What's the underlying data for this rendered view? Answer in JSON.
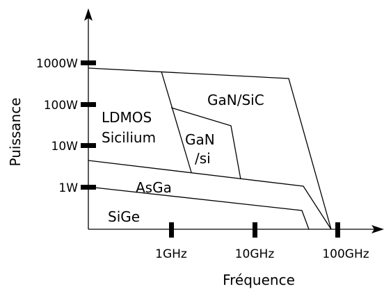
{
  "axes": {
    "x_label": "Fréquence",
    "y_label": "Puissance"
  },
  "y_ticks": [
    "1000W",
    "100W",
    "10W",
    "1W"
  ],
  "x_ticks": [
    "1GHz",
    "10GHz",
    "100GHz"
  ],
  "regions": {
    "ldmos": [
      "LDMOS",
      "Sicilium"
    ],
    "gan_sic": "GaN/SiC",
    "gan_si": [
      "GaN",
      "/si"
    ],
    "asga": "AsGa",
    "sige": "SiGe"
  }
}
